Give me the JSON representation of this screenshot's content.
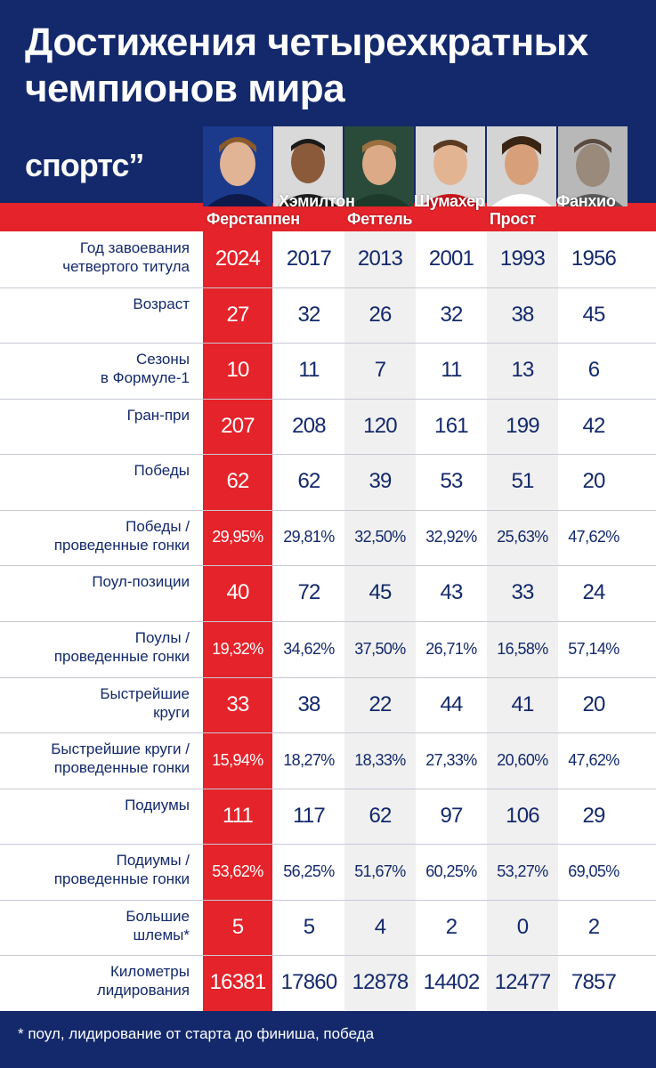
{
  "title": "Достижения четырехкратных чемпионов мира",
  "brand": "спортс’’",
  "drivers": [
    "Ферстаппен",
    "Хэмилтон",
    "Феттель",
    "Шумахер",
    "Прост",
    "Фанхио"
  ],
  "rows": [
    {
      "label": "Год завоевания\nчетвертого титула",
      "values": [
        "2024",
        "2017",
        "2013",
        "2001",
        "1993",
        "1956"
      ]
    },
    {
      "label": "Возраст",
      "values": [
        "27",
        "32",
        "26",
        "32",
        "38",
        "45"
      ]
    },
    {
      "label": "Сезоны\nв Формуле-1",
      "values": [
        "10",
        "11",
        "7",
        "11",
        "13",
        "6"
      ]
    },
    {
      "label": "Гран-при",
      "values": [
        "207",
        "208",
        "120",
        "161",
        "199",
        "42"
      ]
    },
    {
      "label": "Победы",
      "values": [
        "62",
        "62",
        "39",
        "53",
        "51",
        "20"
      ]
    },
    {
      "label": "Победы /\nпроведенные гонки",
      "values": [
        "29,95%",
        "29,81%",
        "32,50%",
        "32,92%",
        "25,63%",
        "47,62%"
      ]
    },
    {
      "label": "Поул-позиции",
      "values": [
        "40",
        "72",
        "45",
        "43",
        "33",
        "24"
      ]
    },
    {
      "label": "Поулы /\nпроведенные гонки",
      "values": [
        "19,32%",
        "34,62%",
        "37,50%",
        "26,71%",
        "16,58%",
        "57,14%"
      ]
    },
    {
      "label": "Быстрейшие\nкруги",
      "values": [
        "33",
        "38",
        "22",
        "44",
        "41",
        "20"
      ]
    },
    {
      "label": "Быстрейшие круги /\nпроведенные гонки",
      "values": [
        "15,94%",
        "18,27%",
        "18,33%",
        "27,33%",
        "20,60%",
        "47,62%"
      ]
    },
    {
      "label": "Подиумы",
      "values": [
        "111",
        "117",
        "62",
        "97",
        "106",
        "29"
      ]
    },
    {
      "label": "Подиумы /\nпроведенные гонки",
      "values": [
        "53,62%",
        "56,25%",
        "51,67%",
        "60,25%",
        "53,27%",
        "69,05%"
      ]
    },
    {
      "label": "Большие\nшлемы*",
      "values": [
        "5",
        "5",
        "4",
        "2",
        "0",
        "2"
      ]
    },
    {
      "label": "Километры\nлидирования",
      "values": [
        "16381",
        "17860",
        "12878",
        "14402",
        "12477",
        "7857"
      ]
    }
  ],
  "footnote": "* поул, лидирование от старта до финиша, победа",
  "colors": {
    "navy": "#13296b",
    "red": "#e5232a",
    "shade": "#f0f0f0"
  }
}
